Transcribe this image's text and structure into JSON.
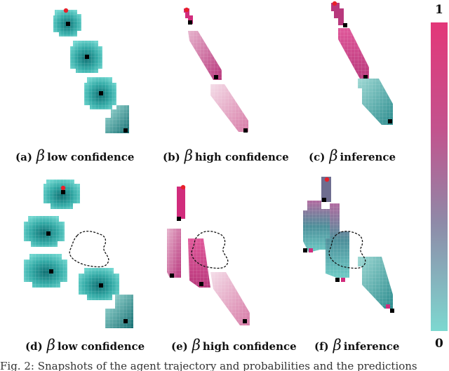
{
  "captions": [
    {
      "tag": "(a)",
      "symbol": "β",
      "label": "low confidence"
    },
    {
      "tag": "(b)",
      "symbol": "β",
      "label": "high confidence"
    },
    {
      "tag": "(c)",
      "symbol": "β",
      "label": "inference"
    },
    {
      "tag": "(d)",
      "symbol": "β",
      "label": "low confidence"
    },
    {
      "tag": "(e)",
      "symbol": "β",
      "label": "high confidence"
    },
    {
      "tag": "(f)",
      "symbol": "β",
      "label": "inference"
    }
  ],
  "colorbar": {
    "max_label": "1",
    "min_label": "0",
    "top_color": "#e0347a",
    "bottom_color": "#7fd6cf"
  },
  "colors": {
    "teal": "#3fbfb8",
    "teal_dark": "#0e6e70",
    "pink": "#d4287a",
    "start_marker": "#e8202a",
    "goal_marker": "#000000"
  },
  "footer": {
    "text": "Fig. 2: Snapshots of the agent trajectory and probabilities and the predictions"
  }
}
